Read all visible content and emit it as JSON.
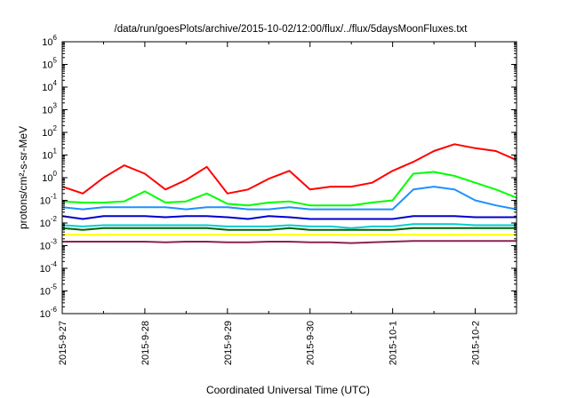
{
  "chart_data": {
    "type": "line",
    "title": "/data/run/goesPlots/archive/2015-10-02/12:00/flux/../flux/5daysMoonFluxes.txt",
    "xlabel": "Coordinated Universal Time (UTC)",
    "ylabel": "protons/cm²-s-sr-MeV",
    "y_scale": "log",
    "ylim": [
      1e-06,
      1000000.0
    ],
    "xlim": [
      "2015-09-27 00:00",
      "2015-10-02 12:00"
    ],
    "x_tick_labels": [
      "2015-9-27",
      "2015-9-28",
      "2015-9-29",
      "2015-9-30",
      "2015-10-1",
      "2015-10-2"
    ],
    "y_tick_labels": [
      {
        "base": "10",
        "exp": "-6"
      },
      {
        "base": "10",
        "exp": "-5"
      },
      {
        "base": "10",
        "exp": "-4"
      },
      {
        "base": "10",
        "exp": "-3"
      },
      {
        "base": "10",
        "exp": "-2"
      },
      {
        "base": "10",
        "exp": "-1"
      },
      {
        "base": "10",
        "exp": "0"
      },
      {
        "base": "10",
        "exp": "1"
      },
      {
        "base": "10",
        "exp": "2"
      },
      {
        "base": "10",
        "exp": "3"
      },
      {
        "base": "10",
        "exp": "4"
      },
      {
        "base": "10",
        "exp": "5"
      },
      {
        "base": "10",
        "exp": "6"
      }
    ],
    "grid": false,
    "x": [
      "09-27 00",
      "09-27 06",
      "09-27 12",
      "09-27 18",
      "09-28 00",
      "09-28 06",
      "09-28 12",
      "09-28 18",
      "09-29 00",
      "09-29 06",
      "09-29 12",
      "09-29 18",
      "09-30 00",
      "09-30 06",
      "09-30 12",
      "09-30 18",
      "10-01 00",
      "10-01 06",
      "10-01 12",
      "10-01 18",
      "10-02 00",
      "10-02 06",
      "10-02 12"
    ],
    "series": [
      {
        "color": "#ff0000",
        "values": [
          0.4,
          0.2,
          1.0,
          3.5,
          1.5,
          0.3,
          0.8,
          3.0,
          0.2,
          0.3,
          0.9,
          2.0,
          0.3,
          0.4,
          0.4,
          0.6,
          2.0,
          5.0,
          15,
          30,
          20,
          15,
          6
        ]
      },
      {
        "color": "#00ff00",
        "values": [
          0.09,
          0.08,
          0.08,
          0.09,
          0.25,
          0.08,
          0.09,
          0.2,
          0.07,
          0.06,
          0.08,
          0.09,
          0.06,
          0.06,
          0.06,
          0.08,
          0.1,
          1.5,
          1.8,
          1.2,
          0.6,
          0.3,
          0.13
        ]
      },
      {
        "color": "#1e90ff",
        "values": [
          0.05,
          0.04,
          0.05,
          0.05,
          0.05,
          0.05,
          0.04,
          0.05,
          0.05,
          0.04,
          0.04,
          0.05,
          0.04,
          0.04,
          0.04,
          0.04,
          0.04,
          0.3,
          0.4,
          0.3,
          0.1,
          0.06,
          0.04
        ]
      },
      {
        "color": "#0000cd",
        "values": [
          0.02,
          0.015,
          0.02,
          0.02,
          0.02,
          0.018,
          0.02,
          0.02,
          0.018,
          0.015,
          0.02,
          0.018,
          0.015,
          0.015,
          0.015,
          0.015,
          0.015,
          0.02,
          0.02,
          0.02,
          0.018,
          0.018,
          0.018
        ]
      },
      {
        "color": "#00ced1",
        "values": [
          0.008,
          0.007,
          0.008,
          0.008,
          0.008,
          0.008,
          0.008,
          0.008,
          0.007,
          0.007,
          0.007,
          0.008,
          0.007,
          0.007,
          0.006,
          0.007,
          0.007,
          0.009,
          0.009,
          0.009,
          0.008,
          0.008,
          0.008
        ]
      },
      {
        "color": "#006400",
        "values": [
          0.006,
          0.005,
          0.006,
          0.006,
          0.006,
          0.006,
          0.006,
          0.006,
          0.005,
          0.005,
          0.005,
          0.006,
          0.005,
          0.005,
          0.005,
          0.005,
          0.005,
          0.006,
          0.006,
          0.006,
          0.006,
          0.006,
          0.006
        ]
      },
      {
        "color": "#ffff00",
        "values": [
          0.003,
          0.003,
          0.003,
          0.003,
          0.003,
          0.003,
          0.003,
          0.003,
          0.003,
          0.003,
          0.003,
          0.003,
          0.003,
          0.003,
          0.003,
          0.003,
          0.003,
          0.003,
          0.003,
          0.003,
          0.003,
          0.003,
          0.003
        ]
      },
      {
        "color": "#8b2252",
        "values": [
          0.0015,
          0.0015,
          0.0015,
          0.0015,
          0.0015,
          0.0014,
          0.0015,
          0.0015,
          0.0014,
          0.0014,
          0.0015,
          0.0015,
          0.0014,
          0.0014,
          0.0013,
          0.0014,
          0.0015,
          0.0016,
          0.0016,
          0.0016,
          0.0016,
          0.0016,
          0.0016
        ]
      }
    ]
  }
}
